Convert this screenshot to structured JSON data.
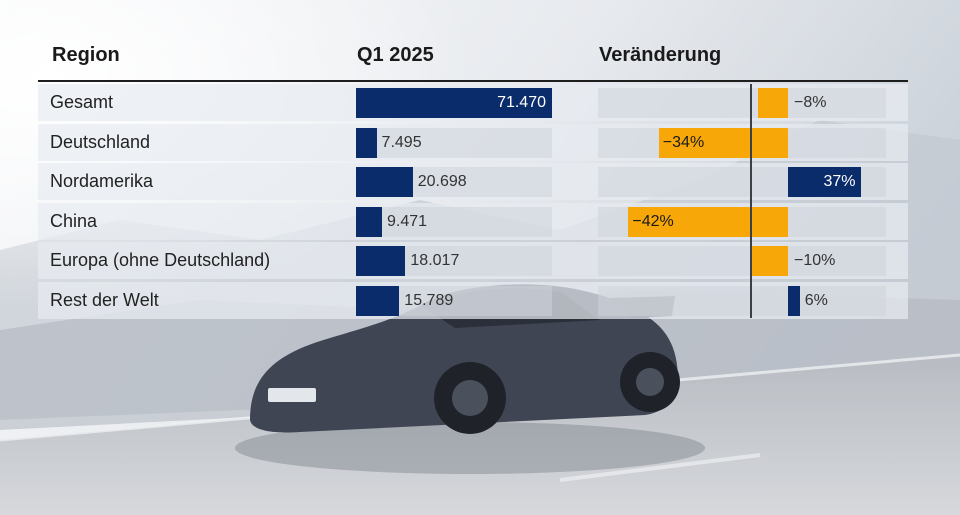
{
  "headers": {
    "region": "Region",
    "q1": "Q1 2025",
    "change": "Veränderung"
  },
  "colors": {
    "navy": "#0b2c6b",
    "orange": "#f7a707",
    "row_background": "#e8ecf1"
  },
  "chart_data": {
    "type": "table",
    "columns": [
      "Region",
      "Q1 2025",
      "Veränderung"
    ],
    "categories": [
      "Gesamt",
      "Deutschland",
      "Nordamerika",
      "China",
      "Europa (ohne Deutschland)",
      "Rest der Welt"
    ],
    "series": [
      {
        "name": "Q1 2025",
        "values": [
          71470,
          7495,
          20698,
          9471,
          18017,
          15789
        ],
        "labels": [
          "71.470",
          "7.495",
          "20.698",
          "9.471",
          "18.017",
          "15.789"
        ]
      },
      {
        "name": "Veränderung",
        "values": [
          -8,
          -34,
          37,
          -42,
          -10,
          6
        ],
        "labels": [
          "−8%",
          "−34%",
          "37%",
          "−42%",
          "−10%",
          "6%"
        ]
      }
    ]
  }
}
